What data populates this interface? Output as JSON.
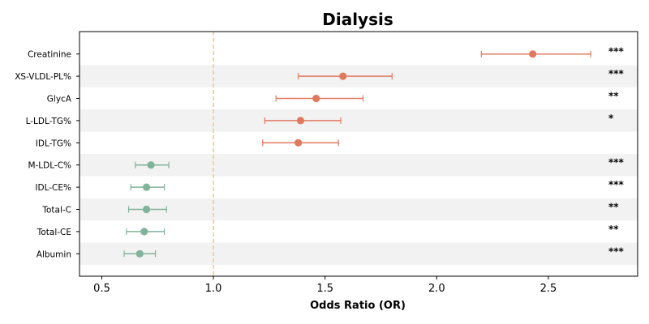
{
  "chart_data": {
    "type": "scatter",
    "subtype": "forest-plot",
    "title": "Dialysis",
    "xlabel": "Odds Ratio (OR)",
    "ylabel": "",
    "xlim": [
      0.4,
      2.9
    ],
    "xticks": [
      "0.5",
      "1.0",
      "1.5",
      "2.0",
      "2.5"
    ],
    "reference_line": 1.0,
    "colors": {
      "risk": "#e07a5f",
      "protective": "#81b29a",
      "reference": "#f2c879",
      "stripe": "#f2f2f2",
      "axis": "#000000"
    },
    "rows": [
      {
        "label": "Creatinine",
        "or": 2.43,
        "ci_low": 2.2,
        "ci_high": 2.69,
        "sig": "***",
        "group": "risk"
      },
      {
        "label": "XS-VLDL-PL%",
        "or": 1.58,
        "ci_low": 1.38,
        "ci_high": 1.8,
        "sig": "***",
        "group": "risk"
      },
      {
        "label": "GlycA",
        "or": 1.46,
        "ci_low": 1.28,
        "ci_high": 1.67,
        "sig": "**",
        "group": "risk"
      },
      {
        "label": "L-LDL-TG%",
        "or": 1.39,
        "ci_low": 1.23,
        "ci_high": 1.57,
        "sig": "*",
        "group": "risk"
      },
      {
        "label": "IDL-TG%",
        "or": 1.38,
        "ci_low": 1.22,
        "ci_high": 1.56,
        "sig": "",
        "group": "risk"
      },
      {
        "label": "M-LDL-C%",
        "or": 0.72,
        "ci_low": 0.65,
        "ci_high": 0.8,
        "sig": "***",
        "group": "protective"
      },
      {
        "label": "IDL-CE%",
        "or": 0.7,
        "ci_low": 0.63,
        "ci_high": 0.78,
        "sig": "***",
        "group": "protective"
      },
      {
        "label": "Total-C",
        "or": 0.7,
        "ci_low": 0.62,
        "ci_high": 0.79,
        "sig": "**",
        "group": "protective"
      },
      {
        "label": "Total-CE",
        "or": 0.69,
        "ci_low": 0.61,
        "ci_high": 0.78,
        "sig": "**",
        "group": "protective"
      },
      {
        "label": "Albumin",
        "or": 0.67,
        "ci_low": 0.6,
        "ci_high": 0.74,
        "sig": "***",
        "group": "protective"
      }
    ],
    "grid": false,
    "legend": "none"
  }
}
